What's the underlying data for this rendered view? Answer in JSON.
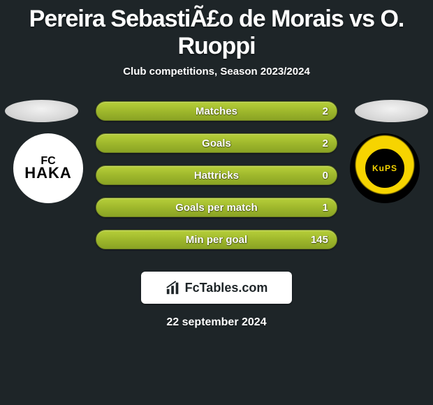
{
  "header": {
    "title": "Pereira SebastiÃ£o de Morais vs O. Ruoppi",
    "subtitle": "Club competitions, Season 2023/2024"
  },
  "players": {
    "left": {
      "club_text_top": "FC",
      "club_text_bottom": "HAKA",
      "logo_bg": "#ffffff",
      "logo_fg": "#000000"
    },
    "right": {
      "club_text": "KuPS",
      "logo_outer": "#000000",
      "logo_ring": "#f6d400",
      "logo_inner": "#000000",
      "logo_text_color": "#f6d400"
    }
  },
  "bars": {
    "bar_gradient_top": "#b7cf3a",
    "bar_gradient_mid": "#9fb82c",
    "bar_gradient_bottom": "#8aa324",
    "bar_border": "#6f8122",
    "rows": [
      {
        "label": "Matches",
        "left": "",
        "right": "2"
      },
      {
        "label": "Goals",
        "left": "",
        "right": "2"
      },
      {
        "label": "Hattricks",
        "left": "",
        "right": "0"
      },
      {
        "label": "Goals per match",
        "left": "",
        "right": "1"
      },
      {
        "label": "Min per goal",
        "left": "",
        "right": "145"
      }
    ]
  },
  "brand": {
    "text": "FcTables.com"
  },
  "footer": {
    "date": "22 september 2024"
  },
  "page": {
    "background": "#1e2528"
  }
}
